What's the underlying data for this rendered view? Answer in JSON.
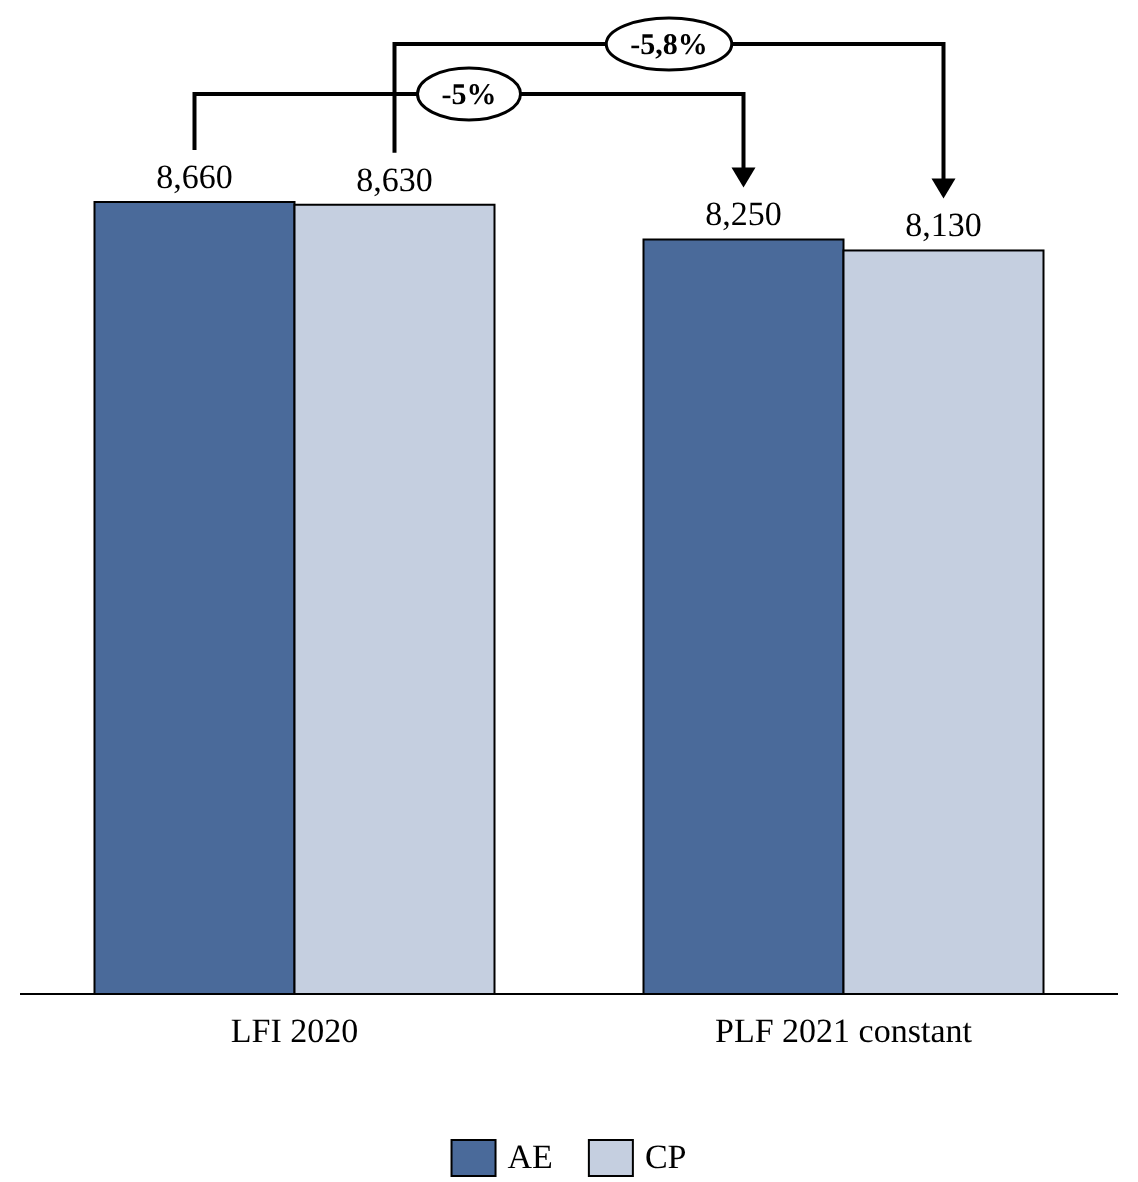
{
  "chart_data": {
    "type": "bar",
    "categories": [
      "LFI 2020",
      "PLF 2021 constant"
    ],
    "series": [
      {
        "name": "AE",
        "color": "#4a6a9a",
        "values": [
          8660,
          8250
        ],
        "value_labels": [
          "8,660",
          "8,250"
        ]
      },
      {
        "name": "CP",
        "color": "#c5cfe0",
        "values": [
          8630,
          8130
        ],
        "value_labels": [
          "8,630",
          "8,130"
        ]
      }
    ],
    "annotations": [
      "-5%",
      "-5,8%"
    ],
    "legend": "bottom"
  }
}
